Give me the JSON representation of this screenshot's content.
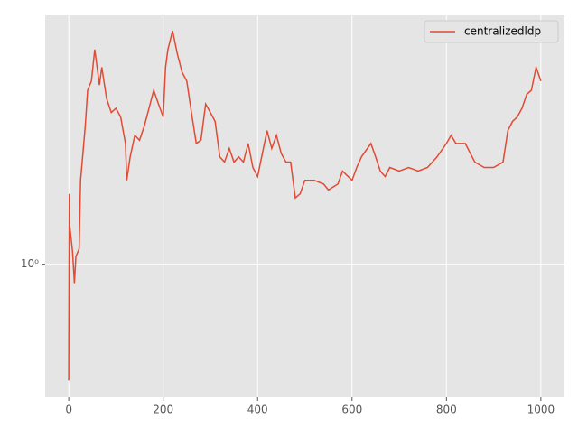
{
  "chart_data": {
    "type": "line",
    "x": [
      0,
      1,
      2,
      8,
      12,
      15,
      22,
      25,
      30,
      35,
      40,
      48,
      55,
      60,
      65,
      70,
      80,
      90,
      100,
      110,
      120,
      123,
      130,
      140,
      150,
      160,
      170,
      180,
      190,
      200,
      205,
      210,
      220,
      230,
      240,
      250,
      260,
      270,
      280,
      290,
      300,
      310,
      320,
      330,
      340,
      350,
      360,
      370,
      380,
      390,
      400,
      410,
      420,
      430,
      440,
      450,
      460,
      470,
      480,
      490,
      500,
      520,
      540,
      550,
      570,
      580,
      600,
      610,
      620,
      640,
      650,
      660,
      670,
      680,
      700,
      720,
      740,
      760,
      780,
      800,
      810,
      820,
      840,
      860,
      880,
      900,
      920,
      930,
      940,
      950,
      960,
      970,
      980,
      990,
      1000
    ],
    "series": [
      {
        "name": "centralizedldp",
        "color": "#E24A33",
        "values": [
          0.64,
          1.31,
          1.16,
          1.05,
          0.93,
          1.03,
          1.06,
          1.38,
          1.53,
          1.7,
          1.95,
          2.02,
          2.28,
          2.13,
          1.99,
          2.13,
          1.89,
          1.79,
          1.82,
          1.76,
          1.59,
          1.38,
          1.51,
          1.64,
          1.61,
          1.7,
          1.82,
          1.95,
          1.85,
          1.76,
          2.13,
          2.28,
          2.45,
          2.24,
          2.09,
          2.02,
          1.79,
          1.59,
          1.61,
          1.85,
          1.79,
          1.73,
          1.51,
          1.48,
          1.56,
          1.48,
          1.51,
          1.48,
          1.59,
          1.45,
          1.4,
          1.53,
          1.67,
          1.56,
          1.64,
          1.53,
          1.48,
          1.48,
          1.29,
          1.31,
          1.38,
          1.38,
          1.36,
          1.33,
          1.36,
          1.43,
          1.38,
          1.45,
          1.51,
          1.59,
          1.51,
          1.43,
          1.4,
          1.45,
          1.43,
          1.45,
          1.43,
          1.45,
          1.51,
          1.59,
          1.64,
          1.59,
          1.59,
          1.48,
          1.45,
          1.45,
          1.48,
          1.67,
          1.73,
          1.76,
          1.82,
          1.92,
          1.95,
          2.13,
          2.02
        ]
      }
    ],
    "xlim": [
      -50,
      1050
    ],
    "xticks": [
      0,
      200,
      400,
      600,
      800,
      1000
    ],
    "ylim": [
      0.6,
      2.6
    ],
    "yscale": "log",
    "yticks": [
      {
        "value": 1,
        "label": "10⁰"
      }
    ],
    "grid": true,
    "legend": "upper right"
  }
}
